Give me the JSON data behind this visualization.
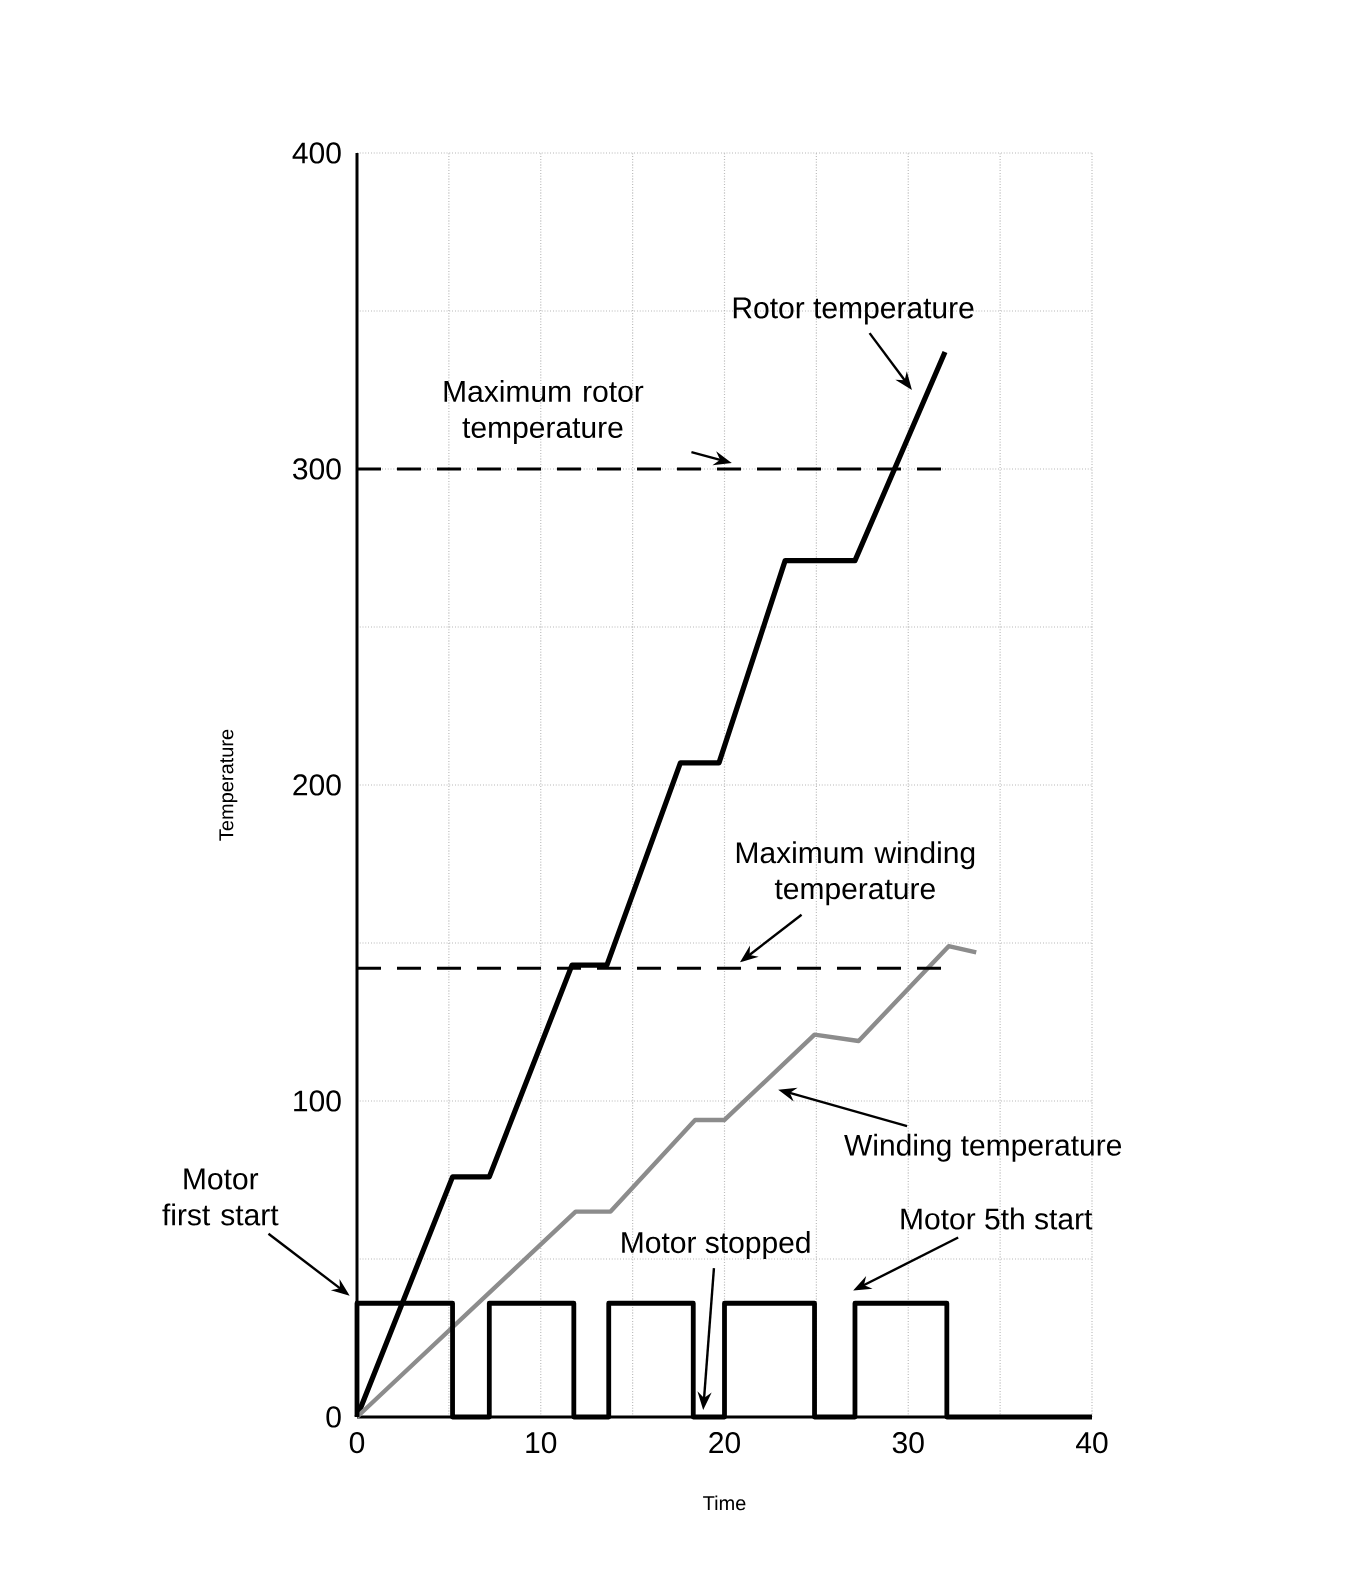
{
  "chart_data": {
    "type": "line",
    "xlabel": "Time",
    "ylabel": "Temperature",
    "xlim": [
      0,
      40
    ],
    "ylim": [
      0,
      400
    ],
    "xticks": [
      0,
      {
        "value": 5,
        "label": null
      },
      10,
      {
        "value": 15,
        "label": null
      },
      20,
      {
        "value": 25,
        "label": null
      },
      30,
      {
        "value": 35,
        "label": null
      },
      40
    ],
    "yticks": [
      0,
      {
        "value": 50,
        "label": null
      },
      100,
      {
        "value": 150,
        "label": null
      },
      200,
      {
        "value": 250,
        "label": null
      },
      300,
      {
        "value": 350,
        "label": null
      },
      400
    ],
    "grid": true,
    "series": [
      {
        "color": "#000000",
        "x": [
          0,
          5.2,
          7.2,
          11.7,
          13.6,
          17.6,
          19.7,
          23.3,
          27.1,
          32
        ],
        "values": [
          0,
          76,
          76,
          143,
          143,
          207,
          207,
          271,
          271,
          337
        ]
      },
      {
        "color": "#8c8c8c",
        "x": [
          0,
          11.9,
          13.8,
          18.4,
          20,
          24.9,
          27.3,
          32.2,
          33.7
        ],
        "values": [
          0,
          65,
          65,
          94,
          94,
          121,
          119,
          149,
          147
        ]
      },
      {
        "color": "#000000",
        "x": [
          0,
          0,
          5.2,
          5.2,
          7.2,
          7.2,
          11.8,
          11.8,
          13.7,
          13.7,
          18.3,
          18.3,
          20,
          20,
          24.9,
          24.9,
          27.1,
          27.1,
          32.1,
          32.1,
          40
        ],
        "values": [
          0,
          36,
          36,
          0,
          0,
          36,
          36,
          0,
          0,
          36,
          36,
          0,
          0,
          36,
          36,
          0,
          0,
          36,
          36,
          0,
          0
        ]
      }
    ],
    "ref_lines": [
      {
        "axis": "y",
        "value": 300,
        "label": "Maximum rotor temperature",
        "line_style": "dashed",
        "color": "#000000"
      },
      {
        "axis": "y",
        "value": 142,
        "label": "Maximum winding temperature",
        "line_style": "dashed",
        "color": "#000000"
      }
    ],
    "annotations": [
      "Rotor temperature",
      "Winding temperature",
      "Motor first start",
      "Motor stopped",
      "Motor 5th start"
    ]
  }
}
